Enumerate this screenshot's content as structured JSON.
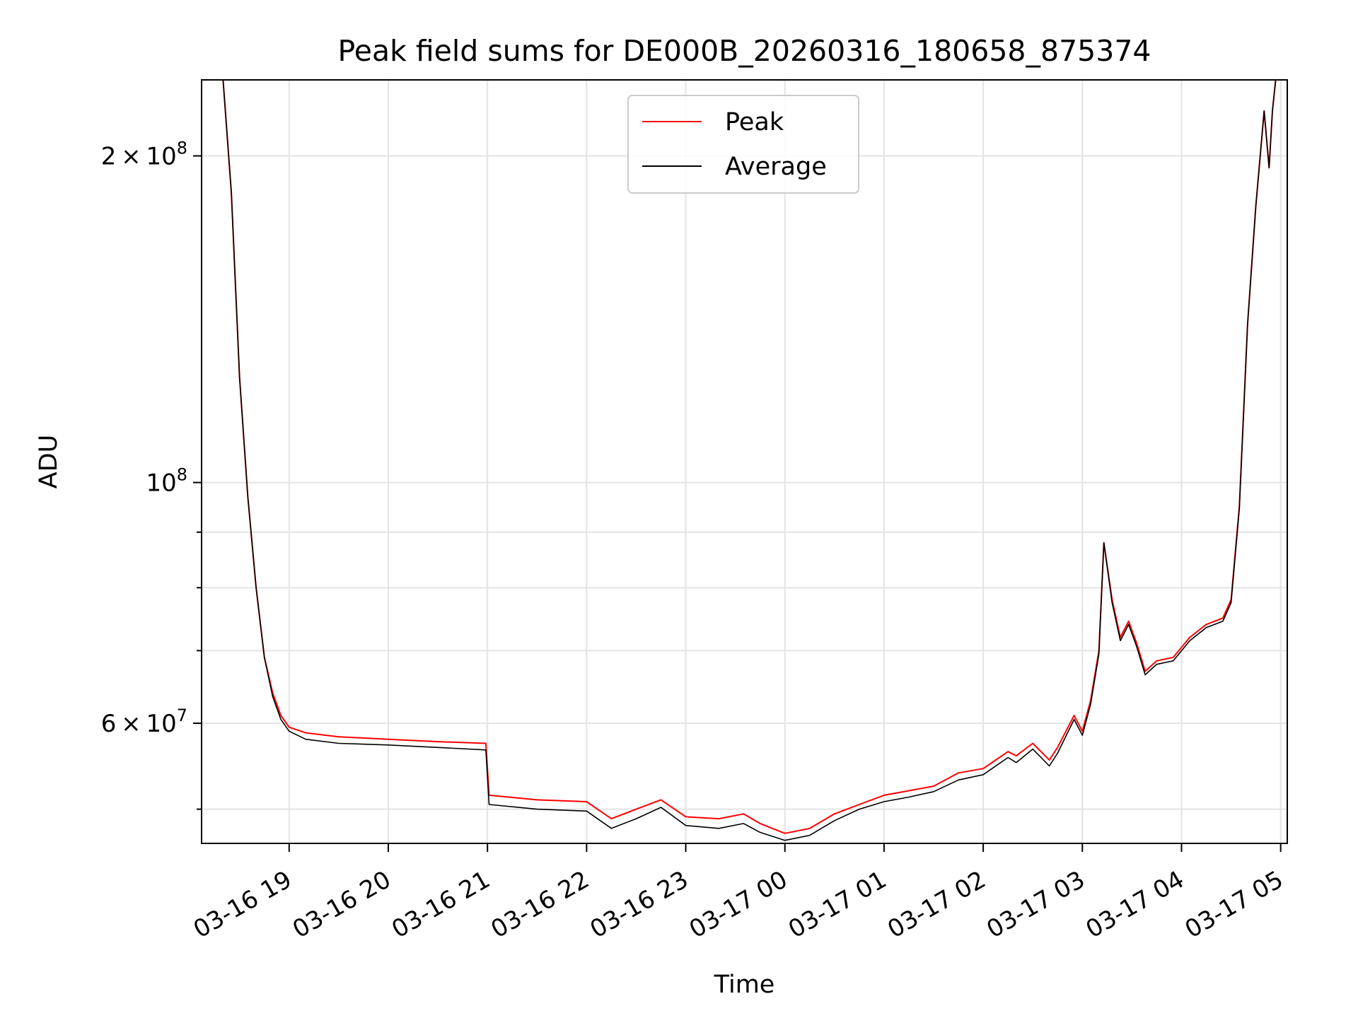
{
  "chart_data": {
    "type": "line",
    "title": "Peak field sums for DE000B_20260316_180658_875374",
    "xlabel": "Time",
    "ylabel": "ADU",
    "x_tick_labels": [
      "03-16 19",
      "03-16 20",
      "03-16 21",
      "03-16 22",
      "03-16 23",
      "03-17 00",
      "03-17 01",
      "03-17 02",
      "03-17 03",
      "03-17 04",
      "03-17 05"
    ],
    "x_ticks": [
      "2026-03-16 19:00",
      "2026-03-16 20:00",
      "2026-03-16 21:00",
      "2026-03-16 22:00",
      "2026-03-16 23:00",
      "2026-03-17 00:00",
      "2026-03-17 01:00",
      "2026-03-17 02:00",
      "2026-03-17 03:00",
      "2026-03-17 04:00",
      "2026-03-17 05:00"
    ],
    "xlim": [
      "2026-03-16 18:07",
      "2026-03-17 05:04"
    ],
    "y_scale": "log",
    "ylim": [
      46500000,
      235000000
    ],
    "y_major_ticks": [
      {
        "value": 60000000,
        "base": "6",
        "exp": "7"
      },
      {
        "value": 100000000,
        "base": "",
        "exp": "8"
      },
      {
        "value": 200000000,
        "base": "2",
        "exp": "8"
      }
    ],
    "y_minor_ticks": [
      50000000,
      70000000,
      80000000,
      90000000
    ],
    "grid": true,
    "legend_position": "upper center",
    "series": [
      {
        "name": "Peak",
        "color": "#ff0000",
        "x": [
          "2026-03-16 18:07",
          "2026-03-16 18:20",
          "2026-03-16 18:25",
          "2026-03-16 18:30",
          "2026-03-16 18:35",
          "2026-03-16 18:40",
          "2026-03-16 18:45",
          "2026-03-16 18:50",
          "2026-03-16 18:55",
          "2026-03-16 19:00",
          "2026-03-16 19:10",
          "2026-03-16 19:30",
          "2026-03-16 20:00",
          "2026-03-16 20:30",
          "2026-03-16 20:59",
          "2026-03-16 21:01",
          "2026-03-16 21:30",
          "2026-03-16 22:00",
          "2026-03-16 22:15",
          "2026-03-16 22:30",
          "2026-03-16 22:45",
          "2026-03-16 23:00",
          "2026-03-16 23:20",
          "2026-03-16 23:35",
          "2026-03-16 23:45",
          "2026-03-17 00:00",
          "2026-03-17 00:15",
          "2026-03-17 00:30",
          "2026-03-17 00:45",
          "2026-03-17 01:00",
          "2026-03-17 01:15",
          "2026-03-17 01:30",
          "2026-03-17 01:45",
          "2026-03-17 02:00",
          "2026-03-17 02:15",
          "2026-03-17 02:20",
          "2026-03-17 02:30",
          "2026-03-17 02:40",
          "2026-03-17 02:45",
          "2026-03-17 02:55",
          "2026-03-17 03:00",
          "2026-03-17 03:05",
          "2026-03-17 03:10",
          "2026-03-17 03:13",
          "2026-03-17 03:18",
          "2026-03-17 03:23",
          "2026-03-17 03:28",
          "2026-03-17 03:33",
          "2026-03-17 03:38",
          "2026-03-17 03:45",
          "2026-03-17 03:55",
          "2026-03-17 04:05",
          "2026-03-17 04:15",
          "2026-03-17 04:25",
          "2026-03-17 04:30",
          "2026-03-17 04:35",
          "2026-03-17 04:40",
          "2026-03-17 04:45",
          "2026-03-17 04:50",
          "2026-03-17 04:53",
          "2026-03-17 04:55",
          "2026-03-17 04:57",
          "2026-03-17 05:00",
          "2026-03-17 05:04"
        ],
        "y": [
          235000000,
          235000000,
          185000000,
          125000000,
          97000000,
          80000000,
          69000000,
          64000000,
          61000000,
          59500000,
          58800000,
          58300000,
          58000000,
          57700000,
          57500000,
          51500000,
          51000000,
          50800000,
          49000000,
          50000000,
          51000000,
          49200000,
          49000000,
          49500000,
          48500000,
          47500000,
          48000000,
          49500000,
          50500000,
          51500000,
          52000000,
          52500000,
          54000000,
          54500000,
          56500000,
          56000000,
          57500000,
          55500000,
          57000000,
          61000000,
          59000000,
          63000000,
          70000000,
          88000000,
          78000000,
          72000000,
          74500000,
          71000000,
          67000000,
          68500000,
          69000000,
          72000000,
          74000000,
          75000000,
          78000000,
          95000000,
          140000000,
          180000000,
          220000000,
          195000000,
          220000000,
          235000000,
          235000000,
          235000000
        ]
      },
      {
        "name": "Average",
        "color": "#000000",
        "x": [
          "2026-03-16 18:07",
          "2026-03-16 18:20",
          "2026-03-16 18:25",
          "2026-03-16 18:30",
          "2026-03-16 18:35",
          "2026-03-16 18:40",
          "2026-03-16 18:45",
          "2026-03-16 18:50",
          "2026-03-16 18:55",
          "2026-03-16 19:00",
          "2026-03-16 19:10",
          "2026-03-16 19:30",
          "2026-03-16 20:00",
          "2026-03-16 20:30",
          "2026-03-16 20:59",
          "2026-03-16 21:01",
          "2026-03-16 21:30",
          "2026-03-16 22:00",
          "2026-03-16 22:15",
          "2026-03-16 22:30",
          "2026-03-16 22:45",
          "2026-03-16 23:00",
          "2026-03-16 23:20",
          "2026-03-16 23:35",
          "2026-03-16 23:45",
          "2026-03-17 00:00",
          "2026-03-17 00:15",
          "2026-03-17 00:30",
          "2026-03-17 00:45",
          "2026-03-17 01:00",
          "2026-03-17 01:15",
          "2026-03-17 01:30",
          "2026-03-17 01:45",
          "2026-03-17 02:00",
          "2026-03-17 02:15",
          "2026-03-17 02:20",
          "2026-03-17 02:30",
          "2026-03-17 02:40",
          "2026-03-17 02:45",
          "2026-03-17 02:55",
          "2026-03-17 03:00",
          "2026-03-17 03:05",
          "2026-03-17 03:10",
          "2026-03-17 03:13",
          "2026-03-17 03:18",
          "2026-03-17 03:23",
          "2026-03-17 03:28",
          "2026-03-17 03:33",
          "2026-03-17 03:38",
          "2026-03-17 03:45",
          "2026-03-17 03:55",
          "2026-03-17 04:05",
          "2026-03-17 04:15",
          "2026-03-17 04:25",
          "2026-03-17 04:30",
          "2026-03-17 04:35",
          "2026-03-17 04:40",
          "2026-03-17 04:45",
          "2026-03-17 04:50",
          "2026-03-17 04:53",
          "2026-03-17 04:55",
          "2026-03-17 04:57",
          "2026-03-17 05:00",
          "2026-03-17 05:04"
        ],
        "y": [
          235000000,
          235000000,
          185000000,
          125000000,
          97000000,
          80000000,
          69000000,
          63500000,
          60500000,
          59000000,
          58000000,
          57500000,
          57300000,
          57000000,
          56700000,
          50500000,
          50000000,
          49800000,
          48000000,
          49000000,
          50200000,
          48300000,
          48000000,
          48500000,
          47600000,
          46800000,
          47300000,
          48800000,
          50000000,
          50800000,
          51300000,
          51900000,
          53200000,
          53800000,
          55800000,
          55200000,
          56800000,
          54800000,
          56300000,
          60500000,
          58500000,
          62500000,
          69500000,
          88000000,
          77500000,
          71500000,
          74000000,
          70500000,
          66500000,
          68000000,
          68500000,
          71500000,
          73500000,
          74500000,
          77500000,
          94500000,
          140000000,
          180000000,
          220000000,
          195000000,
          220000000,
          235000000,
          235000000,
          235000000
        ]
      }
    ]
  }
}
